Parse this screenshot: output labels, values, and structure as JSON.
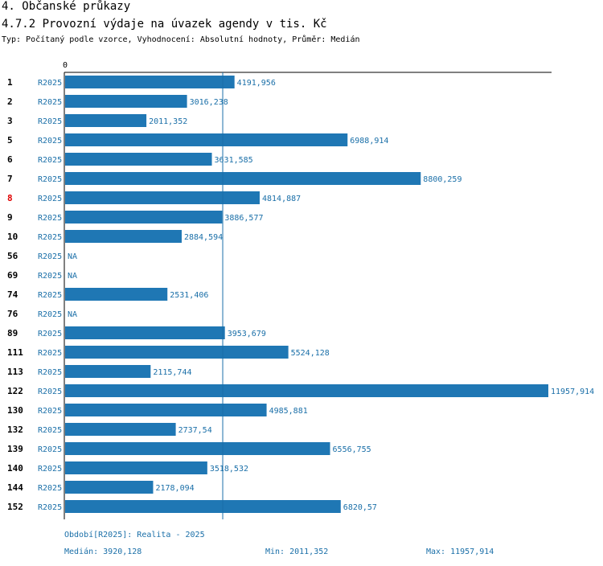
{
  "header": {
    "title": "4. Občanské průkazy",
    "subtitle": "4.7.2 Provozní výdaje na úvazek agendy v tis. Kč",
    "settings": "Typ: Počítaný podle vzorce, Vyhodnocení: Absolutní hodnoty, Průměr: Medián"
  },
  "colors": {
    "bar": "#1f77b4",
    "text_blue": "#1a6fa8",
    "highlight": "#e00000",
    "axis": "#000000"
  },
  "chart_data": {
    "type": "bar",
    "orientation": "horizontal",
    "axis_zero_label": "0",
    "xlim": [
      0,
      11957.914
    ],
    "highlight_category": "8",
    "median_line": 3920.128,
    "categories": [
      "1",
      "2",
      "3",
      "5",
      "6",
      "7",
      "8",
      "9",
      "10",
      "56",
      "69",
      "74",
      "76",
      "89",
      "111",
      "113",
      "122",
      "130",
      "132",
      "139",
      "140",
      "144",
      "152"
    ],
    "series_label": "R2025",
    "values": [
      4191.956,
      3016.238,
      2011.352,
      6988.914,
      3631.585,
      8800.259,
      4814.887,
      3886.577,
      2884.594,
      null,
      null,
      2531.406,
      null,
      3953.679,
      5524.128,
      2115.744,
      11957.914,
      4985.881,
      2737.54,
      6556.755,
      3518.532,
      2178.094,
      6820.57
    ],
    "value_labels": [
      "4191,956",
      "3016,238",
      "2011,352",
      "6988,914",
      "3631,585",
      "8800,259",
      "4814,887",
      "3886,577",
      "2884,594",
      "NA",
      "NA",
      "2531,406",
      "NA",
      "3953,679",
      "5524,128",
      "2115,744",
      "11957,914",
      "4985,881",
      "2737,54",
      "6556,755",
      "3518,532",
      "2178,094",
      "6820,57"
    ]
  },
  "footer": {
    "period": "Období[R2025]: Realita - 2025",
    "median": "Medián: 3920,128",
    "min": "Min: 2011,352",
    "max": "Max: 11957,914"
  }
}
